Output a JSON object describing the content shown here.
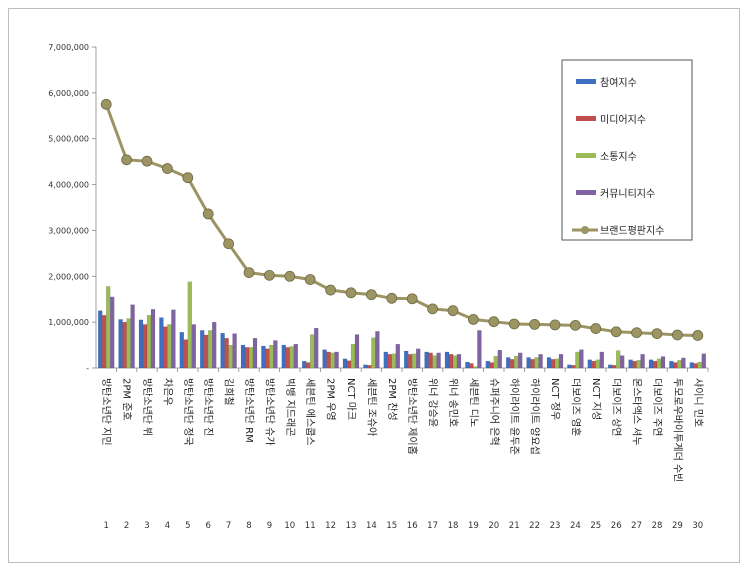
{
  "chart_data": {
    "type": "bar",
    "ylim": [
      0,
      7000000
    ],
    "yticks": [
      0,
      1000000,
      2000000,
      3000000,
      4000000,
      5000000,
      6000000,
      7000000
    ],
    "ytick_labels": [
      "-",
      "1,000,000",
      "2,000,000",
      "3,000,000",
      "4,000,000",
      "5,000,000",
      "6,000,000",
      "7,000,000"
    ],
    "grid": false,
    "legend_position": "top-right",
    "ranks": [
      "1",
      "2",
      "3",
      "4",
      "5",
      "6",
      "7",
      "8",
      "9",
      "10",
      "11",
      "12",
      "13",
      "14",
      "15",
      "16",
      "17",
      "18",
      "19",
      "20",
      "21",
      "22",
      "23",
      "24",
      "25",
      "26",
      "27",
      "28",
      "29",
      "30"
    ],
    "categories": [
      "방탄소년단 지민",
      "2PM 준호",
      "방탄소년단 뷔",
      "차은우",
      "방탄소년단 정국",
      "방탄소년단 진",
      "김희철",
      "방탄소년단 RM",
      "방탄소년단 슈가",
      "빅뱅 지드래곤",
      "세븐틴 에스쿱스",
      "2PM 우영",
      "NCT 마크",
      "세븐틴 조슈아",
      "2PM 찬성",
      "방탄소년단 제이홉",
      "위너 강승윤",
      "위너 송민호",
      "세븐틴 디노",
      "슈퍼주니어 은혁",
      "하이라이트 윤두준",
      "하이라이트 양요섭",
      "NCT 정우",
      "더보이즈 영훈",
      "NCT 지성",
      "더보이즈 상연",
      "몬스타엑스 셔누",
      "더보이즈 주연",
      "투모로우바이투게더 수빈",
      "샤이니 민호"
    ],
    "series": [
      {
        "name": "참여지수",
        "color": "#3f6fc0",
        "kind": "bar",
        "values": [
          1250000,
          1060000,
          1050000,
          1100000,
          780000,
          820000,
          760000,
          500000,
          480000,
          500000,
          150000,
          400000,
          200000,
          70000,
          350000,
          370000,
          350000,
          350000,
          130000,
          150000,
          230000,
          230000,
          230000,
          70000,
          180000,
          70000,
          180000,
          180000,
          150000,
          120000
        ]
      },
      {
        "name": "미디어지수",
        "color": "#c0504d",
        "kind": "bar",
        "values": [
          1150000,
          1000000,
          950000,
          900000,
          620000,
          720000,
          650000,
          450000,
          420000,
          450000,
          120000,
          350000,
          160000,
          60000,
          300000,
          300000,
          330000,
          300000,
          100000,
          120000,
          190000,
          190000,
          190000,
          60000,
          150000,
          60000,
          150000,
          150000,
          120000,
          100000
        ]
      },
      {
        "name": "소통지수",
        "color": "#9bbb59",
        "kind": "bar",
        "values": [
          1780000,
          1080000,
          1150000,
          950000,
          1880000,
          820000,
          500000,
          450000,
          500000,
          470000,
          730000,
          330000,
          520000,
          660000,
          310000,
          310000,
          270000,
          270000,
          30000,
          260000,
          260000,
          230000,
          200000,
          350000,
          180000,
          380000,
          170000,
          200000,
          170000,
          130000
        ]
      },
      {
        "name": "커뮤니티지수",
        "color": "#8064a2",
        "kind": "bar",
        "values": [
          1550000,
          1380000,
          1280000,
          1270000,
          950000,
          1000000,
          750000,
          650000,
          600000,
          520000,
          870000,
          350000,
          730000,
          800000,
          520000,
          420000,
          330000,
          300000,
          820000,
          390000,
          330000,
          300000,
          300000,
          400000,
          350000,
          270000,
          300000,
          250000,
          220000,
          310000
        ]
      },
      {
        "name": "브랜드평판지수",
        "color": "#9c9462",
        "kind": "line",
        "values": [
          5750000,
          4540000,
          4510000,
          4350000,
          4150000,
          3360000,
          2710000,
          2080000,
          2020000,
          2000000,
          1930000,
          1700000,
          1640000,
          1600000,
          1520000,
          1510000,
          1290000,
          1250000,
          1060000,
          1010000,
          960000,
          950000,
          940000,
          930000,
          860000,
          790000,
          770000,
          750000,
          720000,
          710000
        ]
      }
    ]
  }
}
